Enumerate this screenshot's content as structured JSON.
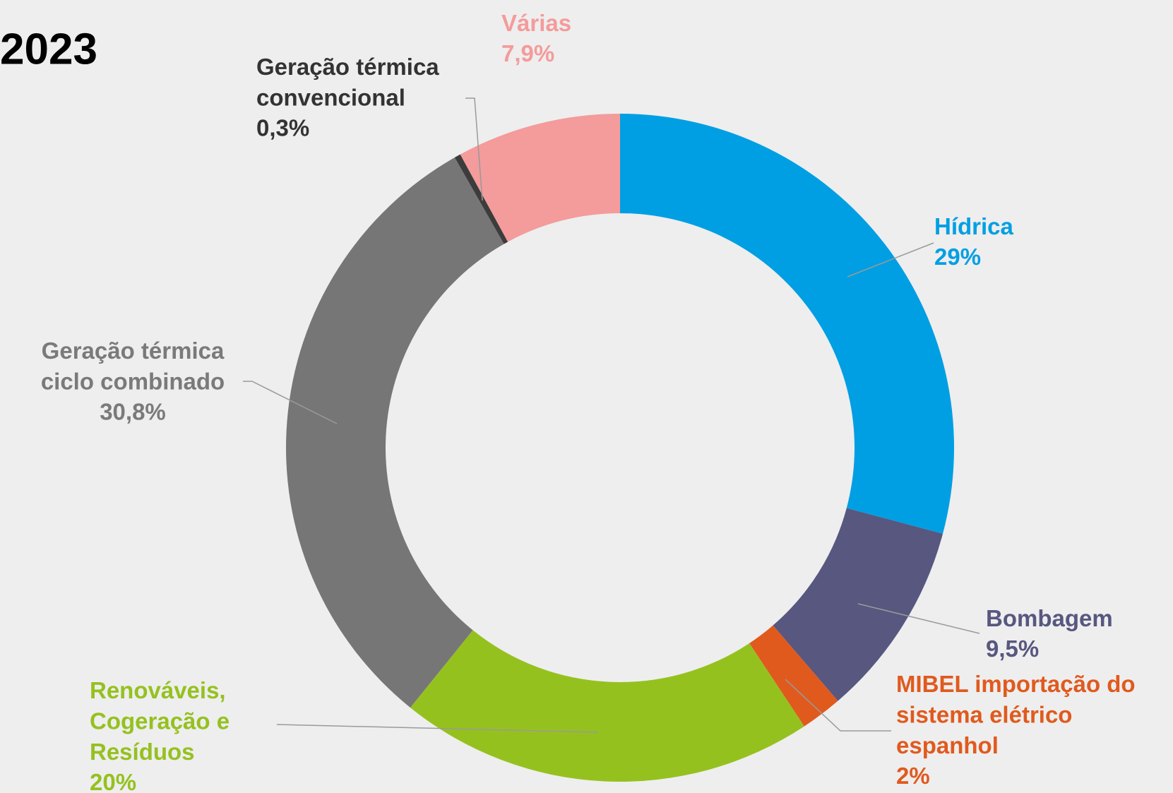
{
  "chart_data": {
    "type": "donut",
    "title": "2023",
    "categories": [
      "Hídrica",
      "Bombagem",
      "MIBEL importação do\nsistema elétrico\nespanhol",
      "Renováveis,\nCogeração e\nResíduos",
      "Geração térmica\nciclo combinado",
      "Geração térmica\nconvencional",
      "Várias"
    ],
    "values": [
      29,
      9.5,
      2,
      20,
      30.8,
      0.3,
      7.9
    ],
    "value_labels": [
      "29%",
      "9,5%",
      "2%",
      "20%",
      "30,8%",
      "0,3%",
      "7,9%"
    ],
    "colors": [
      "#009fe3",
      "#575780",
      "#e05a1e",
      "#95c11f",
      "#767676",
      "#3c3c3c",
      "#f49b9b"
    ],
    "label_colors": [
      "#009fe3",
      "#575780",
      "#e05a1e",
      "#95c11f",
      "#7a7a7a",
      "#333333",
      "#f49b9b"
    ]
  }
}
